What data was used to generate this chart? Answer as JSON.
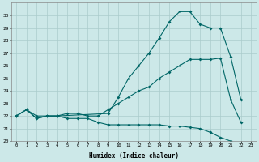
{
  "xlabel": "Humidex (Indice chaleur)",
  "background_color": "#cce8e8",
  "grid_color": "#aacccc",
  "line_color": "#006666",
  "xlim": [
    -0.5,
    23.5
  ],
  "ylim": [
    20,
    31
  ],
  "xticks": [
    0,
    1,
    2,
    3,
    4,
    5,
    6,
    7,
    8,
    9,
    10,
    11,
    12,
    13,
    14,
    15,
    16,
    17,
    18,
    19,
    20,
    21,
    22,
    23
  ],
  "yticks": [
    20,
    21,
    22,
    23,
    24,
    25,
    26,
    27,
    28,
    29,
    30
  ],
  "line1_x": [
    0,
    1,
    2,
    3,
    4,
    5,
    6,
    7,
    8,
    9,
    10,
    11,
    12,
    13,
    14,
    15,
    16,
    17,
    18,
    19,
    20,
    21,
    22
  ],
  "line1_y": [
    22.0,
    22.5,
    21.8,
    22.0,
    22.0,
    21.8,
    21.8,
    21.8,
    21.5,
    21.3,
    21.3,
    21.3,
    21.3,
    21.3,
    21.3,
    21.2,
    21.2,
    21.1,
    21.0,
    20.7,
    20.3,
    20.0,
    19.9
  ],
  "line2_x": [
    0,
    1,
    2,
    3,
    4,
    5,
    6,
    7,
    8,
    9,
    10,
    11,
    12,
    13,
    14,
    15,
    16,
    17,
    18,
    19,
    20,
    21,
    22
  ],
  "line2_y": [
    22.0,
    22.5,
    21.8,
    22.0,
    22.0,
    22.2,
    22.2,
    22.0,
    22.0,
    22.5,
    23.0,
    23.5,
    24.0,
    24.3,
    25.0,
    25.5,
    26.0,
    26.5,
    26.5,
    26.5,
    26.6,
    23.3,
    21.5
  ],
  "line3_x": [
    0,
    1,
    2,
    3,
    4,
    9,
    10,
    11,
    12,
    13,
    14,
    15,
    16,
    17,
    18,
    19,
    20,
    21,
    22
  ],
  "line3_y": [
    22.0,
    22.5,
    22.0,
    22.0,
    22.0,
    22.2,
    23.5,
    25.0,
    26.0,
    27.0,
    28.2,
    29.5,
    30.3,
    30.3,
    29.3,
    29.0,
    29.0,
    26.7,
    23.3
  ]
}
